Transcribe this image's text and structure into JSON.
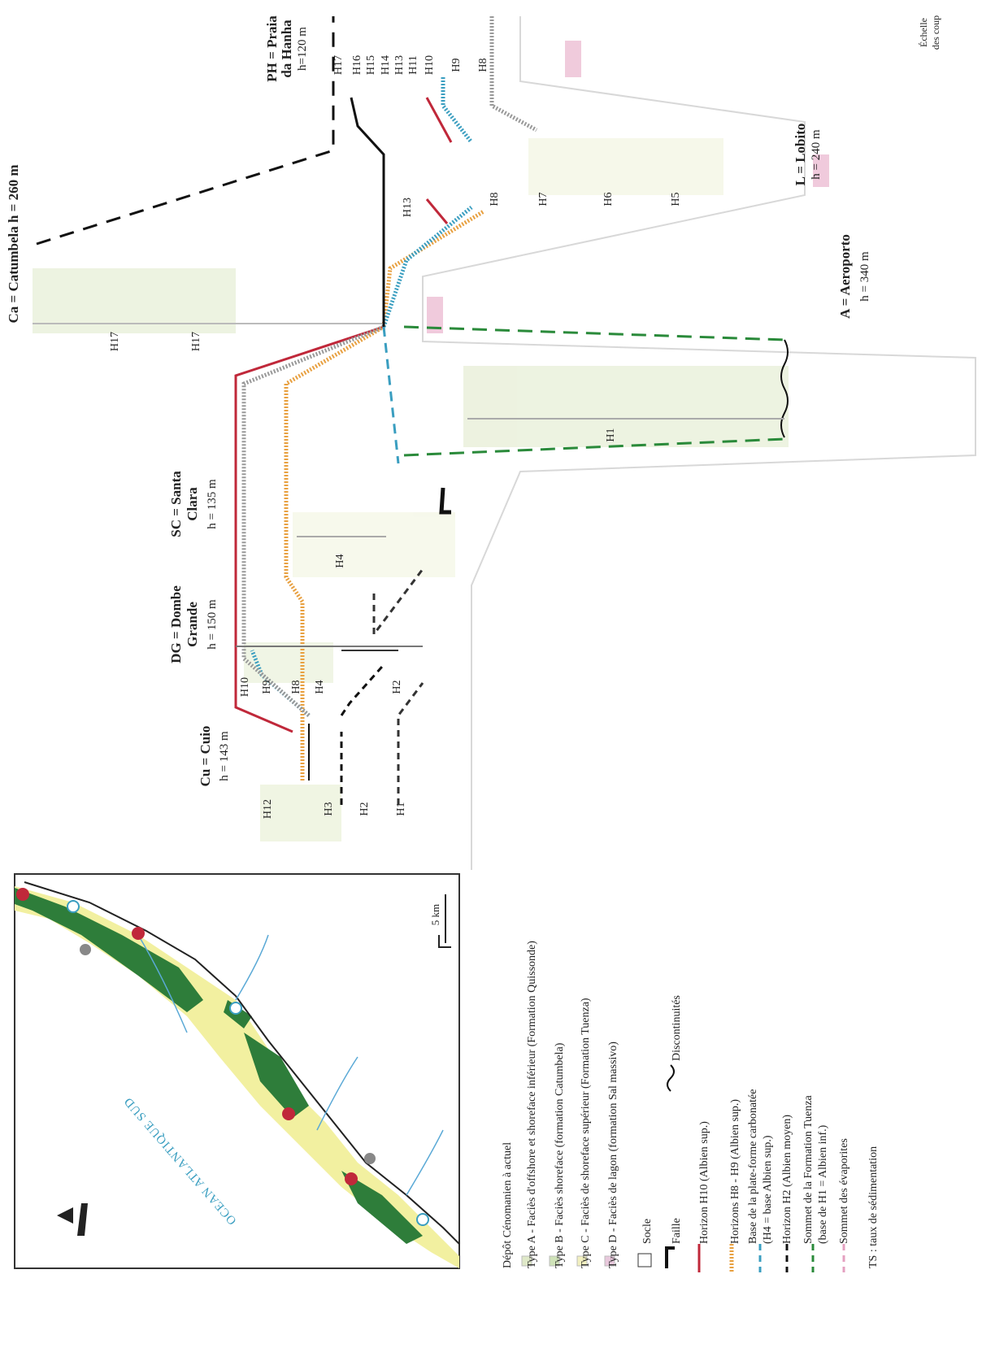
{
  "localities": [
    {
      "lines": [
        "Ca = Catumbela  h = 260 m"
      ]
    },
    {
      "lines": [
        "PH = Praia",
        "da Hanha",
        "h=120 m"
      ]
    },
    {
      "lines": [
        "L = Lobito",
        "h = 240 m"
      ]
    },
    {
      "lines": [
        "A = Aeroporto",
        "h = 340 m"
      ]
    },
    {
      "lines": [
        "SC = Santa",
        "Clara",
        "h = 135 m"
      ]
    },
    {
      "lines": [
        "DG = Dombe",
        "Grande",
        "h = 150 m"
      ]
    },
    {
      "lines": [
        "Cu = Cuio",
        "h = 143 m"
      ]
    },
    {
      "lines": [
        "Échelle",
        "des coup"
      ]
    }
  ],
  "horizon_labels": [
    "H17",
    "H17",
    "H17",
    "H16",
    "H15",
    "H14",
    "H13",
    "H11",
    "H10",
    "H9",
    "H8",
    "H13",
    "H8",
    "H7",
    "H6",
    "H5",
    "H1",
    "H4",
    "H12",
    "H3",
    "H2",
    "H1",
    "H10",
    "H9",
    "H8",
    "H4",
    "H2"
  ],
  "map": {
    "sea": "OCEAN ATLANTIQUE SUD",
    "scale": "5 km"
  },
  "legend": [
    "Dépôt Cénomanien à actuel",
    "Type A - Faciès d'offshore et shoreface inférieur (Formation Quissonde)",
    "Type B - Faciès shoreface (formation Catumbela)",
    "Type C - Faciès de shoreface supérieur (Formation Tuenza)",
    "Type D - Faciès de lagon (formation Sal massivo)",
    "Socle",
    "Faille",
    "Discontinuités",
    "Horizon H10 (Albien sup.)",
    "Horizons H8 - H9 (Albien sup.)",
    "Base de la plate-forme carbonatée",
    "(H4 = base Albien sup.)",
    "Horizon H2 (Albien moyen)",
    "Sommet de la Formation Tuenza",
    "(base de H1 = Albien inf.)",
    "Sommet des évaporites",
    "TS : taux de sédimentation"
  ]
}
